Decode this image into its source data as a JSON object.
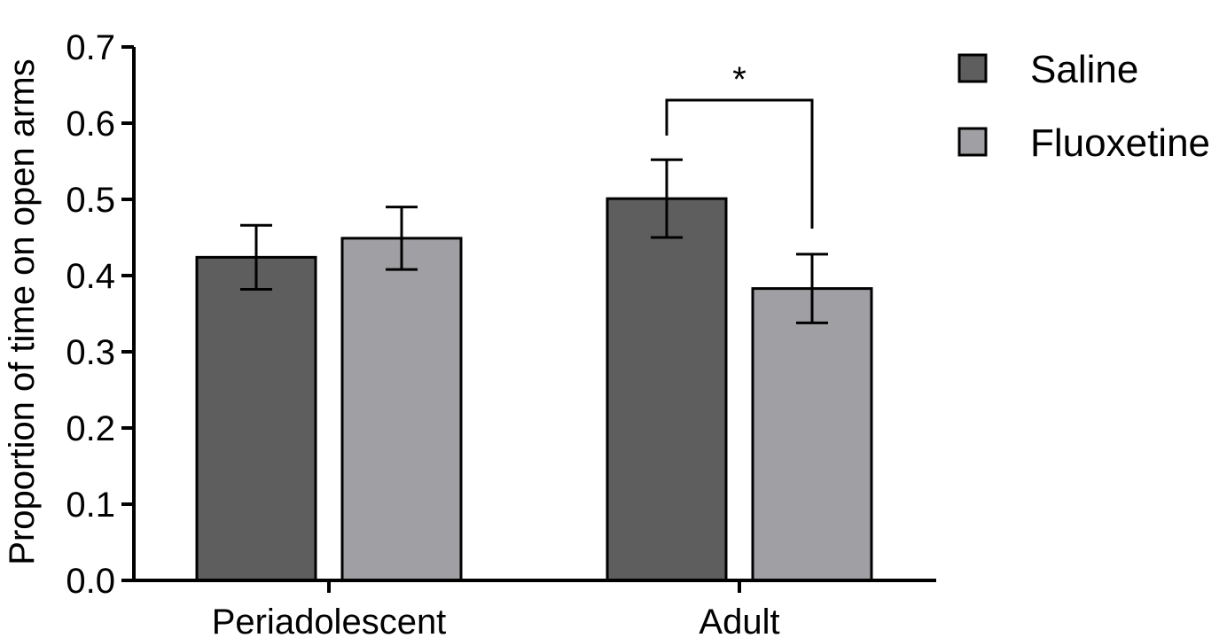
{
  "chart_data": {
    "type": "bar",
    "title": "",
    "xlabel": "",
    "ylabel": "Proportion of time on open arms",
    "ylim": [
      0.0,
      0.7
    ],
    "yticks": [
      "0.0",
      "0.1",
      "0.2",
      "0.3",
      "0.4",
      "0.5",
      "0.6",
      "0.7"
    ],
    "categories": [
      "Periadolescent",
      "Adult"
    ],
    "series": [
      {
        "name": "Saline",
        "color": "#5e5e5e",
        "values": [
          0.424,
          0.501
        ],
        "errors": [
          0.042,
          0.051
        ]
      },
      {
        "name": "Fluoxetine",
        "color": "#a0a0a4",
        "values": [
          0.449,
          0.383
        ],
        "errors": [
          0.041,
          0.045
        ]
      }
    ],
    "legend_position": "top-right",
    "grid": false,
    "annotations": [
      {
        "type": "significance",
        "label": "*",
        "category": "Adult",
        "between": [
          "Saline",
          "Fluoxetine"
        ]
      }
    ]
  }
}
